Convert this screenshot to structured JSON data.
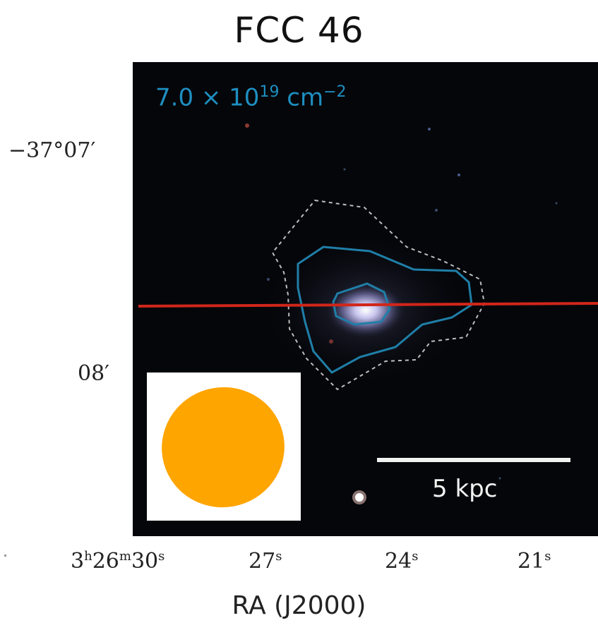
{
  "title": "FCC 46",
  "contour_label": {
    "prefix": "7.0 × 10",
    "exponent": "19",
    "unit": " cm",
    "unit_exponent": "−2",
    "color": "#1e8fc0"
  },
  "scalebar_label": "5 kpc",
  "y_ticks": [
    "−37°07′",
    "08′"
  ],
  "x_ticks": [
    "3h26m30s",
    "27s",
    "24s",
    "21s"
  ],
  "x_axis_label": "RA (J2000)",
  "colors": {
    "contour_outer": "#bdbdbd",
    "contour_mid": "#1f7fa8",
    "slit": "#d1261a",
    "beam": "#ffa500"
  }
}
